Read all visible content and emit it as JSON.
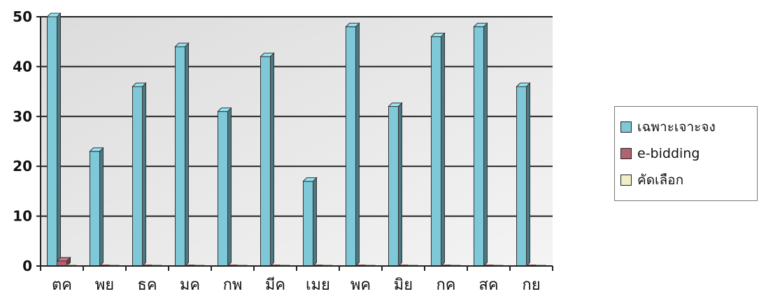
{
  "chart_data": {
    "type": "bar",
    "categories": [
      "ตค",
      "พย",
      "ธค",
      "มค",
      "กพ",
      "มีค",
      "เมย",
      "พค",
      "มิย",
      "กค",
      "สค",
      "กย"
    ],
    "series": [
      {
        "name": "เฉพาะเจาะจง",
        "color": "#7ec8d8",
        "values": [
          50,
          23,
          36,
          44,
          31,
          42,
          17,
          48,
          32,
          46,
          48,
          36
        ]
      },
      {
        "name": "e-bidding",
        "color": "#b06472",
        "values": [
          1,
          0,
          0,
          0,
          0,
          0,
          0,
          0,
          0,
          0,
          0,
          0
        ]
      },
      {
        "name": "คัดเลือก",
        "color": "#f2efc6",
        "values": [
          0,
          0,
          0,
          0,
          0,
          0,
          0,
          0,
          0,
          0,
          0,
          0
        ]
      }
    ],
    "y_ticks": [
      "0",
      "10",
      "20",
      "30",
      "40",
      "50"
    ],
    "ylim": [
      0,
      50
    ],
    "grid": true,
    "legend_position": "right"
  }
}
